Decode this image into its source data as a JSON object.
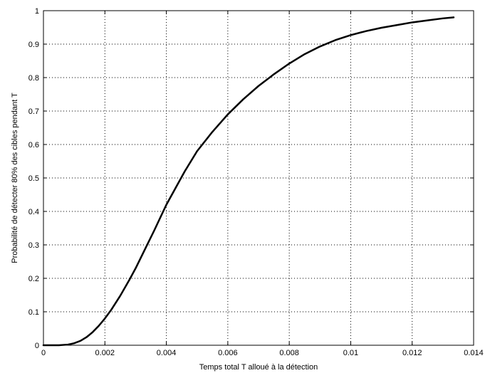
{
  "chart_data": {
    "type": "line",
    "title": "",
    "xlabel": "Temps total T alloué à la détection",
    "ylabel": "Probabilité de détecter 80% des cibles pendant T",
    "xlim": [
      0,
      0.014
    ],
    "ylim": [
      0,
      1
    ],
    "grid": true,
    "grid_style": "dotted",
    "x_ticks": [
      0,
      0.002,
      0.004,
      0.006,
      0.008,
      0.01,
      0.012,
      0.014
    ],
    "x_tick_labels": [
      "0",
      "0.002",
      "0.004",
      "0.006",
      "0.008",
      "0.01",
      "0.012",
      "0.014"
    ],
    "y_ticks": [
      0,
      0.1,
      0.2,
      0.3,
      0.4,
      0.5,
      0.6,
      0.7,
      0.8,
      0.9,
      1
    ],
    "y_tick_labels": [
      "0",
      "0.1",
      "0.2",
      "0.3",
      "0.4",
      "0.5",
      "0.6",
      "0.7",
      "0.8",
      "0.9",
      "1"
    ],
    "series": [
      {
        "color": "#000000",
        "x": [
          0,
          0.0005,
          0.0008,
          0.001,
          0.0012,
          0.0014,
          0.0016,
          0.0018,
          0.002,
          0.0022,
          0.0025,
          0.0028,
          0.003,
          0.0033,
          0.0036,
          0.004,
          0.0043,
          0.0046,
          0.005,
          0.0055,
          0.006,
          0.0065,
          0.007,
          0.0075,
          0.008,
          0.0085,
          0.009,
          0.0095,
          0.01,
          0.0105,
          0.011,
          0.0115,
          0.012,
          0.0125,
          0.013,
          0.01335
        ],
        "y": [
          0,
          0,
          0.002,
          0.006,
          0.013,
          0.024,
          0.039,
          0.058,
          0.08,
          0.105,
          0.148,
          0.196,
          0.23,
          0.286,
          0.342,
          0.42,
          0.47,
          0.52,
          0.58,
          0.638,
          0.69,
          0.735,
          0.775,
          0.81,
          0.842,
          0.87,
          0.893,
          0.912,
          0.927,
          0.939,
          0.949,
          0.957,
          0.965,
          0.971,
          0.977,
          0.98
        ]
      }
    ]
  }
}
